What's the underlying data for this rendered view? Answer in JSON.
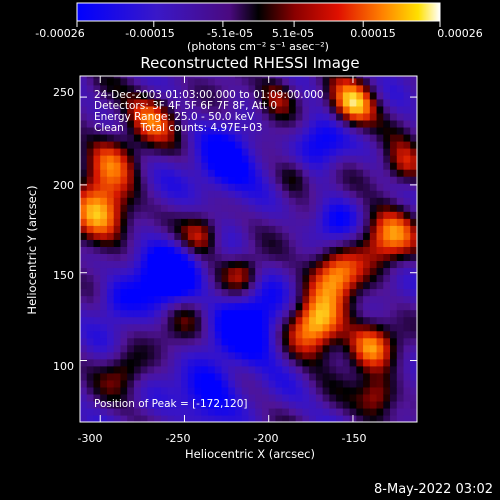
{
  "colorbar": {
    "ticks": [
      "-0.00026",
      "-0.00015",
      "-5.1e-05",
      "5.1e-05",
      "0.00015",
      "0.00026"
    ],
    "tick_values": [
      -0.00026,
      -0.00015,
      -5.1e-05,
      5.1e-05,
      0.00015,
      0.00026
    ],
    "range": [
      -0.00026,
      0.00026
    ],
    "units": "(photons cm⁻² s⁻¹ asec⁻²)"
  },
  "chart_data": {
    "type": "heatmap",
    "title": "Reconstructed RHESSI Image",
    "xlabel": "Heliocentric X (arcsec)",
    "ylabel": "Heliocentric Y (arcsec)",
    "xlim": [
      -312,
      -112
    ],
    "ylim": [
      65,
      262
    ],
    "xticks": [
      -300,
      -250,
      -200,
      -150
    ],
    "yticks": [
      100,
      150,
      200,
      250
    ],
    "colormap": "blue-purple-red-orange-yellow-white",
    "peak": [
      -172,
      120
    ],
    "annotations": [
      "24-Dec-2003 01:03:00.000 to 01:09:00.000",
      "Detectors: 3F 4F 5F 6F 7F 8F, Att 0",
      "Energy Range: 25.0 - 50.0 keV",
      "Clean     Total counts: 4.97E+03",
      "Position of Peak = [-172,120]"
    ]
  },
  "footer": {
    "timestamp": "8-May-2022 03:02"
  }
}
